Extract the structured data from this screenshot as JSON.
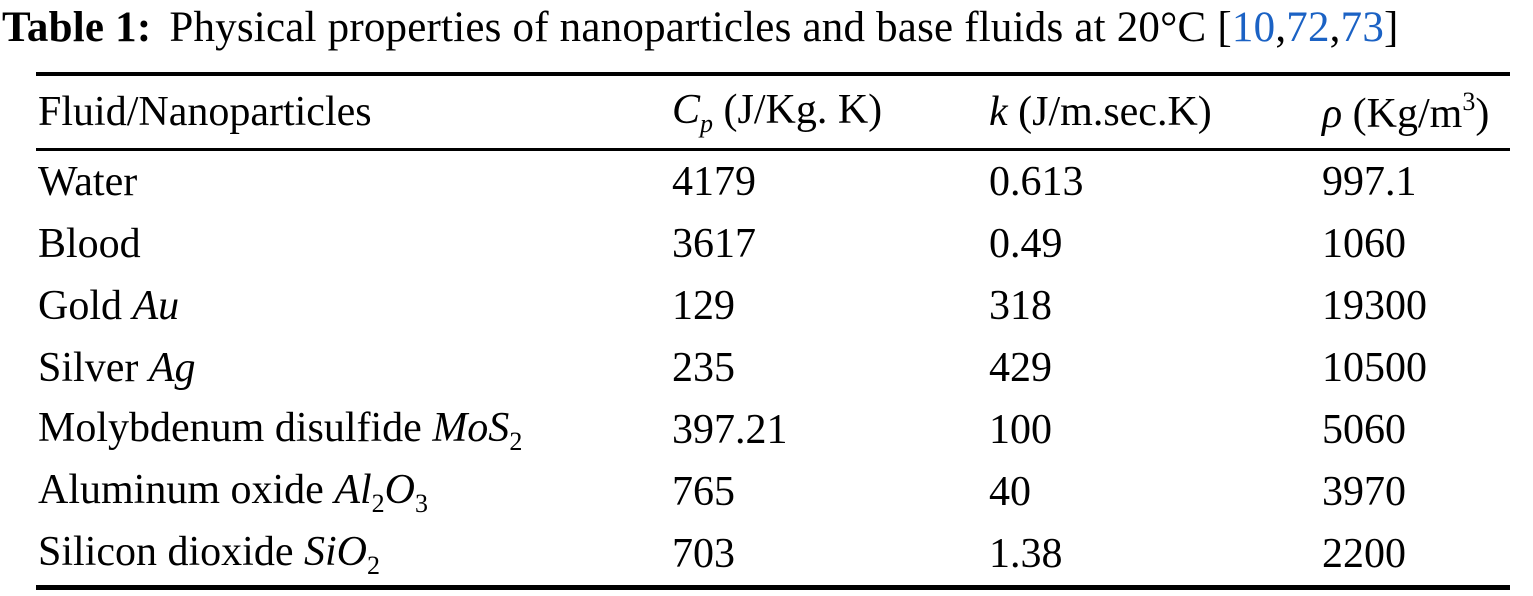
{
  "caption": {
    "parts": [
      {
        "t": "Table 1:",
        "s": "bold"
      },
      {
        "t": "Physical properties of nanoparticles and base fluids at 20°C ",
        "s": "roman"
      },
      {
        "t": "[",
        "s": "roman"
      },
      {
        "t": "10",
        "s": "cite"
      },
      {
        "t": ",",
        "s": "roman"
      },
      {
        "t": "72",
        "s": "cite"
      },
      {
        "t": ",",
        "s": "roman"
      },
      {
        "t": "73",
        "s": "cite"
      },
      {
        "t": "]",
        "s": "roman"
      }
    ]
  },
  "table": {
    "columns": [
      {
        "key": "fluid",
        "parts": [
          {
            "t": "Fluid/Nanoparticles",
            "s": "roman"
          }
        ]
      },
      {
        "key": "cp",
        "parts": [
          {
            "t": "C",
            "s": "italic"
          },
          {
            "t": "p",
            "s": "subitalic"
          },
          {
            "t": " (J/Kg. K)",
            "s": "roman"
          }
        ]
      },
      {
        "key": "k",
        "parts": [
          {
            "t": "k",
            "s": "italic"
          },
          {
            "t": " (J/m.sec.K)",
            "s": "roman"
          }
        ]
      },
      {
        "key": "rho",
        "parts": [
          {
            "t": "ρ",
            "s": "italic"
          },
          {
            "t": " (Kg/m",
            "s": "roman"
          },
          {
            "t": "3",
            "s": "sup"
          },
          {
            "t": ")",
            "s": "roman"
          }
        ]
      }
    ],
    "rows": [
      {
        "fluid": [
          {
            "t": "Water",
            "s": "roman"
          }
        ],
        "cp": "4179",
        "k": "0.613",
        "rho": "997.1"
      },
      {
        "fluid": [
          {
            "t": "Blood",
            "s": "roman"
          }
        ],
        "cp": "3617",
        "k": "0.49",
        "rho": "1060"
      },
      {
        "fluid": [
          {
            "t": "Gold ",
            "s": "roman"
          },
          {
            "t": "Au",
            "s": "italic"
          }
        ],
        "cp": "129",
        "k": "318",
        "rho": "19300"
      },
      {
        "fluid": [
          {
            "t": "Silver ",
            "s": "roman"
          },
          {
            "t": "Ag",
            "s": "italic"
          }
        ],
        "cp": "235",
        "k": "429",
        "rho": "10500"
      },
      {
        "fluid": [
          {
            "t": "Molybdenum disulfide ",
            "s": "roman"
          },
          {
            "t": "MoS",
            "s": "italic"
          },
          {
            "t": "2",
            "s": "sub"
          }
        ],
        "cp": "397.21",
        "k": "100",
        "rho": "5060"
      },
      {
        "fluid": [
          {
            "t": "Aluminum oxide ",
            "s": "roman"
          },
          {
            "t": "Al",
            "s": "italic"
          },
          {
            "t": "2",
            "s": "sub"
          },
          {
            "t": "O",
            "s": "italic"
          },
          {
            "t": "3",
            "s": "sub"
          }
        ],
        "cp": "765",
        "k": "40",
        "rho": "3970"
      },
      {
        "fluid": [
          {
            "t": "Silicon dioxide ",
            "s": "roman"
          },
          {
            "t": "SiO",
            "s": "italic"
          },
          {
            "t": "2",
            "s": "sub"
          }
        ],
        "cp": "703",
        "k": "1.38",
        "rho": "2200"
      }
    ]
  },
  "colors": {
    "citation_blue": "#1b62c4",
    "text": "#000000",
    "background": "#ffffff"
  }
}
